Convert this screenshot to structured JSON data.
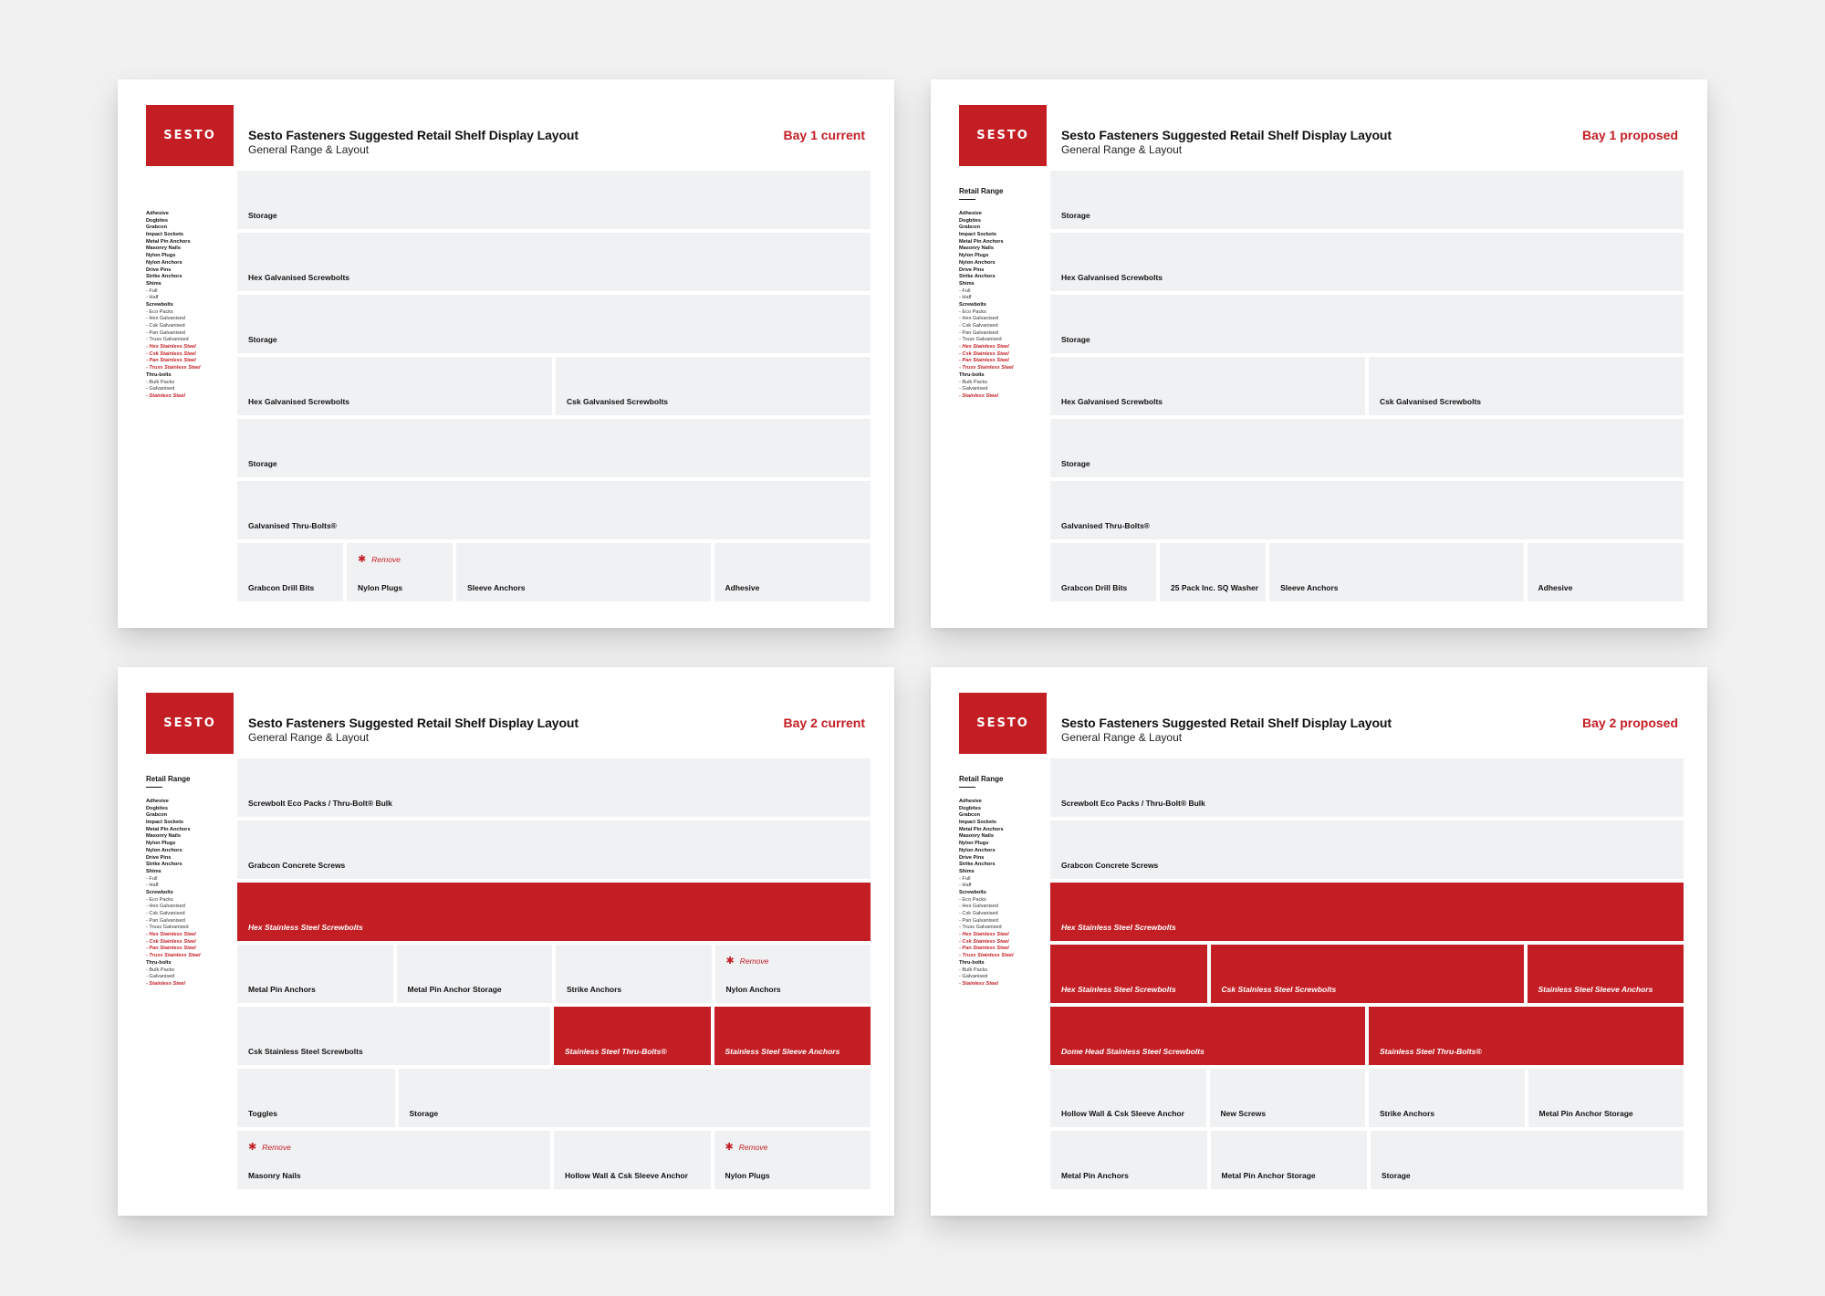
{
  "brand": {
    "logo_text": "SESTO",
    "accent": "#c41e25",
    "cell_bg": "#f0f1f3"
  },
  "remove_label": "Remove",
  "range_list": [
    {
      "text": "Adhesive",
      "style": "b"
    },
    {
      "text": "Dogbites",
      "style": "b"
    },
    {
      "text": "Grabcon",
      "style": "b"
    },
    {
      "text": "Impact Sockets",
      "style": "b"
    },
    {
      "text": "Metal Pin Anchors",
      "style": "b"
    },
    {
      "text": "Masonry Nails",
      "style": "b"
    },
    {
      "text": "Nylon Plugs",
      "style": "b"
    },
    {
      "text": "Nylon Anchors",
      "style": "b"
    },
    {
      "text": "Drive Pins",
      "style": "b"
    },
    {
      "text": "Strike Anchors",
      "style": "b"
    },
    {
      "text": "Shims",
      "style": "b"
    },
    {
      "text": "- Full",
      "style": "sub"
    },
    {
      "text": "- Half",
      "style": "sub"
    },
    {
      "text": "Screwbolts",
      "style": "b"
    },
    {
      "text": "- Eco Packs",
      "style": "sub"
    },
    {
      "text": "- Hex Galvanised",
      "style": "sub"
    },
    {
      "text": "- Csk Galvanised",
      "style": "sub"
    },
    {
      "text": "- Pan Galvanised",
      "style": "sub"
    },
    {
      "text": "- Truss Galvanised",
      "style": "sub"
    },
    {
      "text": "- Hex Stainless Steel",
      "style": "red"
    },
    {
      "text": "- Csk Stainless Steel",
      "style": "red"
    },
    {
      "text": "- Pan Stainless Steel",
      "style": "red"
    },
    {
      "text": "- Truss Stainless Steel",
      "style": "red"
    },
    {
      "text": "Thru-bolts",
      "style": "b"
    },
    {
      "text": "- Bulk Packs",
      "style": "sub"
    },
    {
      "text": "- Galvanised",
      "style": "sub"
    },
    {
      "text": "- Stainless Steel",
      "style": "red"
    }
  ],
  "panels": [
    {
      "title": "Sesto Fasteners Suggested Retail Shelf Display Layout",
      "subtitle": "General Range & Layout",
      "bay": "Bay 1 current",
      "side_heading": "",
      "rows": [
        [
          {
            "label": "Storage",
            "w": 1
          }
        ],
        [
          {
            "label": "Hex Galvanised Screwbolts",
            "w": 1
          }
        ],
        [
          {
            "label": "Storage",
            "w": 1
          }
        ],
        [
          {
            "label": "Hex Galvanised Screwbolts",
            "w": 2
          },
          {
            "label": "Csk Galvanised Screwbolts",
            "w": 2
          }
        ],
        [
          {
            "label": "Storage",
            "w": 1
          }
        ],
        [
          {
            "label": "Galvanised Thru-Bolts®",
            "w": 1
          }
        ],
        [
          {
            "label": "Grabcon Drill Bits",
            "w": 90
          },
          {
            "label": "Nylon Plugs",
            "w": 90,
            "remove": true
          },
          {
            "label": "Sleeve Anchors",
            "w": 216
          },
          {
            "label": "Adhesive",
            "w": 133
          }
        ]
      ]
    },
    {
      "title": "Sesto Fasteners Suggested Retail Shelf Display Layout",
      "subtitle": "General Range & Layout",
      "bay": "Bay 1 proposed",
      "side_heading": "Retail Range",
      "rows": [
        [
          {
            "label": "Storage",
            "w": 1
          }
        ],
        [
          {
            "label": "Hex Galvanised Screwbolts",
            "w": 1
          }
        ],
        [
          {
            "label": "Storage",
            "w": 1
          }
        ],
        [
          {
            "label": "Hex Galvanised Screwbolts",
            "w": 2
          },
          {
            "label": "Csk Galvanised Screwbolts",
            "w": 2
          }
        ],
        [
          {
            "label": "Storage",
            "w": 1
          }
        ],
        [
          {
            "label": "Galvanised Thru-Bolts®",
            "w": 1
          }
        ],
        [
          {
            "label": "Grabcon Drill Bits",
            "w": 90
          },
          {
            "label": "25 Pack Inc. SQ Washer",
            "w": 90
          },
          {
            "label": "Sleeve Anchors",
            "w": 216
          },
          {
            "label": "Adhesive",
            "w": 133
          }
        ]
      ]
    },
    {
      "title": "Sesto Fasteners Suggested Retail Shelf Display Layout",
      "subtitle": "General Range & Layout",
      "bay": "Bay 2 current",
      "side_heading": "Retail Range",
      "rows": [
        [
          {
            "label": "Screwbolt Eco Packs / Thru-Bolt® Bulk",
            "w": 1
          }
        ],
        [
          {
            "label": "Grabcon Concrete Screws",
            "w": 1
          }
        ],
        [
          {
            "label": "Hex Stainless Steel Screwbolts",
            "w": 1,
            "red": true
          }
        ],
        [
          {
            "label": "Metal Pin Anchors",
            "w": 1
          },
          {
            "label": "Metal Pin Anchor Storage",
            "w": 1
          },
          {
            "label": "Strike Anchors",
            "w": 1
          },
          {
            "label": "Nylon Anchors",
            "w": 1,
            "remove": true
          }
        ],
        [
          {
            "label": "Csk Stainless Steel Screwbolts",
            "w": 2
          },
          {
            "label": "Stainless Steel Thru-Bolts®",
            "w": 1,
            "red": true
          },
          {
            "label": "Stainless Steel Sleeve Anchors",
            "w": 1,
            "red": true
          }
        ],
        [
          {
            "label": "Toggles",
            "w": 1
          },
          {
            "label": "Storage",
            "w": 3
          }
        ],
        [
          {
            "label": "Masonry Nails",
            "w": 2,
            "remove": true
          },
          {
            "label": "Hollow Wall & Csk Sleeve Anchor",
            "w": 1
          },
          {
            "label": "Nylon Plugs",
            "w": 1,
            "remove": true
          }
        ]
      ]
    },
    {
      "title": "Sesto Fasteners Suggested Retail Shelf Display Layout",
      "subtitle": "General Range & Layout",
      "bay": "Bay 2 proposed",
      "side_heading": "Retail Range",
      "rows": [
        [
          {
            "label": "Screwbolt Eco Packs / Thru-Bolt® Bulk",
            "w": 1
          }
        ],
        [
          {
            "label": "Grabcon Concrete Screws",
            "w": 1
          }
        ],
        [
          {
            "label": "Hex Stainless Steel Screwbolts",
            "w": 1,
            "red": true
          }
        ],
        [
          {
            "label": "Hex Stainless Steel Screwbolts",
            "w": 1,
            "red": true
          },
          {
            "label": "Csk Stainless Steel Screwbolts",
            "w": 2,
            "red": true
          },
          {
            "label": "Stainless Steel Sleeve Anchors",
            "w": 1,
            "red": true
          }
        ],
        [
          {
            "label": "Dome Head Stainless Steel Screwbolts",
            "w": 2,
            "red": true
          },
          {
            "label": "Stainless Steel Thru-Bolts®",
            "w": 2,
            "red": true
          }
        ],
        [
          {
            "label": "Hollow Wall & Csk Sleeve Anchor",
            "w": 1
          },
          {
            "label": "New Screws",
            "w": 1
          },
          {
            "label": "Strike Anchors",
            "w": 1
          },
          {
            "label": "Metal Pin Anchor Storage",
            "w": 1
          }
        ],
        [
          {
            "label": "Metal Pin Anchors",
            "w": 1
          },
          {
            "label": "Metal Pin Anchor Storage",
            "w": 1
          },
          {
            "label": "Storage",
            "w": 2
          }
        ]
      ]
    }
  ]
}
